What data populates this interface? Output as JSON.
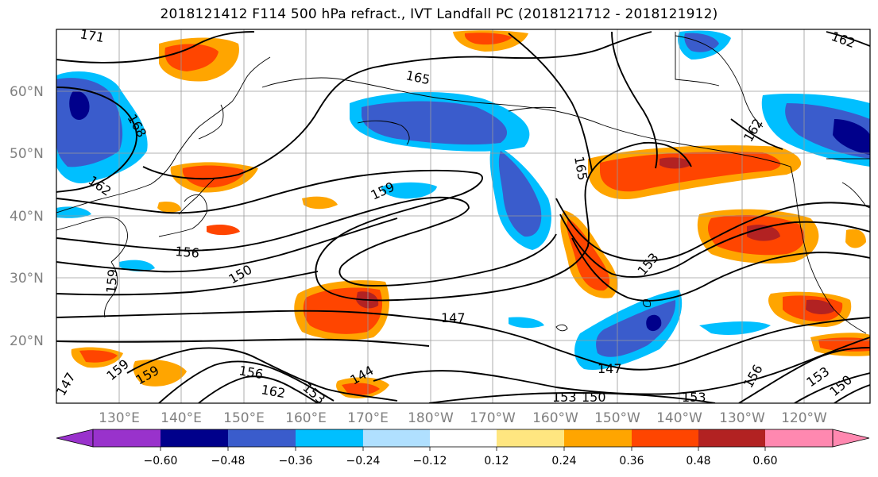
{
  "title": "2018121412 F114 500 hPa refract., IVT Landfall PC (2018121712 - 2018121912)",
  "lat_labels": [
    "60°N",
    "50°N",
    "40°N",
    "30°N",
    "20°N"
  ],
  "lon_labels": [
    "130°E",
    "140°E",
    "150°E",
    "160°E",
    "170°E",
    "180°W",
    "170°W",
    "160°W",
    "150°W",
    "140°W",
    "130°W",
    "120°W"
  ],
  "colorbar": {
    "ticks": [
      "−0.60",
      "−0.48",
      "−0.36",
      "−0.24",
      "−0.12",
      "0.12",
      "0.24",
      "0.36",
      "0.48",
      "0.60"
    ],
    "colors": [
      "#9932cc",
      "#00008b",
      "#3a5ccc",
      "#00bfff",
      "#b0e0ff",
      "#ffffff",
      "#ffe680",
      "#ffa500",
      "#ff4500",
      "#b22222",
      "#ff88b0"
    ]
  },
  "contour_labels": [
    {
      "text": "171"
    },
    {
      "text": "165"
    },
    {
      "text": "168"
    },
    {
      "text": "162"
    },
    {
      "text": "159"
    },
    {
      "text": "165"
    },
    {
      "text": "162"
    },
    {
      "text": "156"
    },
    {
      "text": "150"
    },
    {
      "text": "159"
    },
    {
      "text": "153"
    },
    {
      "text": "147"
    },
    {
      "text": "147"
    },
    {
      "text": "159"
    },
    {
      "text": "159"
    },
    {
      "text": "156"
    },
    {
      "text": "162"
    },
    {
      "text": "153"
    },
    {
      "text": "144"
    },
    {
      "text": "153"
    },
    {
      "text": "150"
    },
    {
      "text": "153"
    },
    {
      "text": "156"
    },
    {
      "text": "153"
    },
    {
      "text": "150"
    },
    {
      "text": "162"
    },
    {
      "text": "147"
    }
  ]
}
